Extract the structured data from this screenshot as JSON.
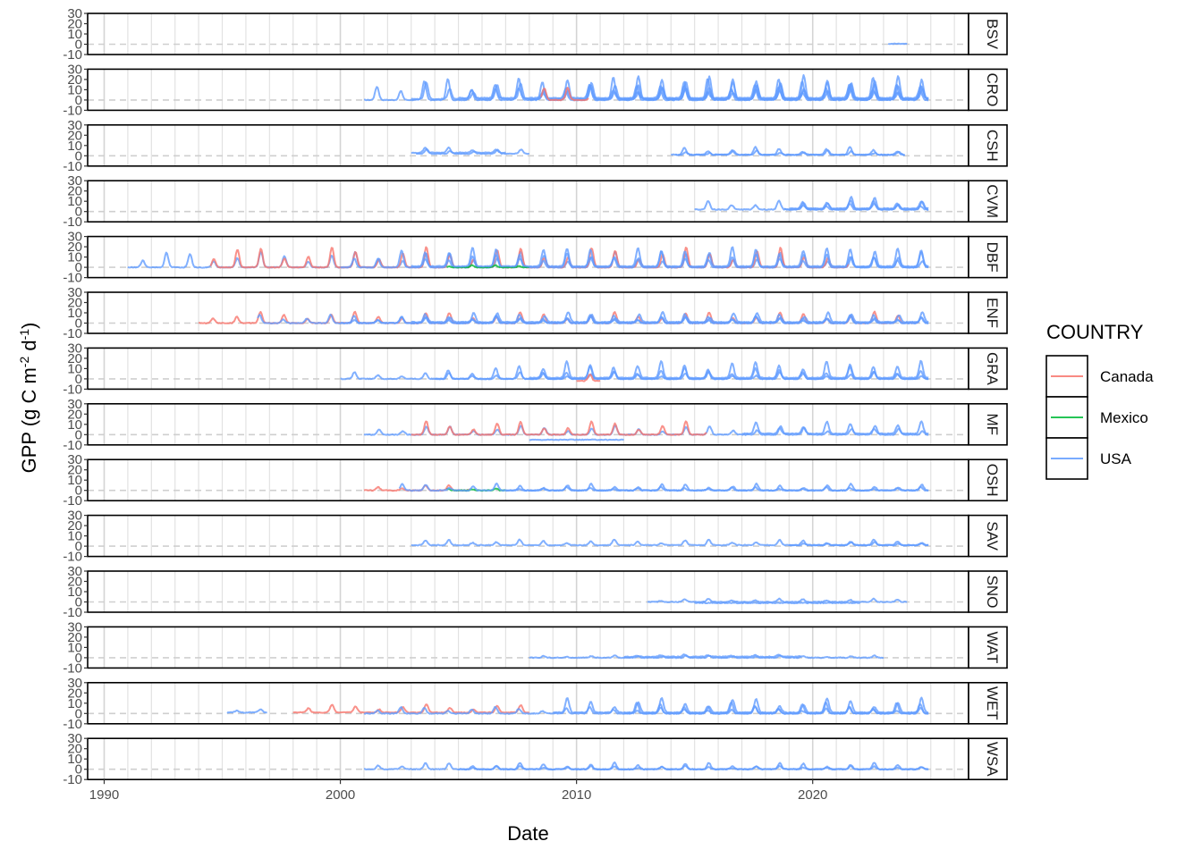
{
  "chart_data": {
    "type": "line",
    "xlabel": "Date",
    "ylabel": "GPP (g C m-2 d-1)",
    "ylabel_parts": {
      "main": "GPP (g C m",
      "sup1": "-2",
      "mid": " d",
      "sup2": "-1",
      "end": ")"
    },
    "x_ticks": [
      1990,
      2000,
      2010,
      2020
    ],
    "x_tick_labels": [
      "1990",
      "2000",
      "2010",
      "2020"
    ],
    "xlim": [
      1989.3,
      2026.6
    ],
    "y_ticks": [
      -10,
      0,
      10,
      20,
      30
    ],
    "y_tick_labels": [
      "-10",
      "0",
      "10",
      "20",
      "30"
    ],
    "ylim": [
      -10,
      30
    ],
    "reference_line": 0,
    "grid": "vertical major and minor",
    "facets": [
      "BSV",
      "CRO",
      "CSH",
      "CVM",
      "DBF",
      "ENF",
      "GRA",
      "MF",
      "OSH",
      "SAV",
      "SNO",
      "WAT",
      "WET",
      "WSA"
    ],
    "legend": {
      "title": "COUNTRY",
      "position": "right",
      "entries": [
        {
          "name": "Canada",
          "color": "#F8766D"
        },
        {
          "name": "Mexico",
          "color": "#00BA38"
        },
        {
          "name": "USA",
          "color": "#619CFF"
        }
      ]
    },
    "panels": [
      {
        "facet": "BSV",
        "series": [
          {
            "country": "USA",
            "start": 2023.2,
            "end": 2024.0,
            "peak": 0.5,
            "base": 0.5
          }
        ]
      },
      {
        "facet": "CRO",
        "series": [
          {
            "country": "USA",
            "start": 2001.0,
            "end": 2024.9,
            "peak": 20,
            "base": 0
          },
          {
            "country": "USA",
            "start": 2003.0,
            "end": 2024.9,
            "peak": 16,
            "base": 1
          },
          {
            "country": "USA",
            "start": 2005.0,
            "end": 2024.9,
            "peak": 14,
            "base": 2
          },
          {
            "country": "USA",
            "start": 2008.0,
            "end": 2024.9,
            "peak": 18,
            "base": 0.5
          },
          {
            "country": "Canada",
            "start": 2008.5,
            "end": 2010.5,
            "peak": 12,
            "base": 0
          },
          {
            "country": "USA",
            "start": 2012.0,
            "end": 2024.9,
            "peak": 22,
            "base": 1
          }
        ]
      },
      {
        "facet": "CSH",
        "series": [
          {
            "country": "USA",
            "start": 2003.0,
            "end": 2007.0,
            "peak": 8,
            "base": 3
          },
          {
            "country": "USA",
            "start": 2003.2,
            "end": 2008.0,
            "peak": 6,
            "base": 2
          },
          {
            "country": "USA",
            "start": 2014.0,
            "end": 2023.9,
            "peak": 8,
            "base": 1
          },
          {
            "country": "USA",
            "start": 2014.2,
            "end": 2023.9,
            "peak": 5,
            "base": 1
          }
        ]
      },
      {
        "facet": "CVM",
        "series": [
          {
            "country": "USA",
            "start": 2015.0,
            "end": 2024.9,
            "peak": 10,
            "base": 2
          },
          {
            "country": "USA",
            "start": 2018.8,
            "end": 2024.9,
            "peak": 14,
            "base": 2
          },
          {
            "country": "USA",
            "start": 2019.0,
            "end": 2024.9,
            "peak": 10,
            "base": 3
          }
        ]
      },
      {
        "facet": "DBF",
        "series": [
          {
            "country": "USA",
            "start": 1991.0,
            "end": 2024.9,
            "peak": 14,
            "base": 0
          },
          {
            "country": "Canada",
            "start": 1994.5,
            "end": 2021.5,
            "peak": 18,
            "base": 0
          },
          {
            "country": "USA",
            "start": 2000.0,
            "end": 2024.9,
            "peak": 16,
            "base": 0
          },
          {
            "country": "Mexico",
            "start": 2004.5,
            "end": 2008.0,
            "peak": 2,
            "base": 0
          },
          {
            "country": "USA",
            "start": 2003.0,
            "end": 2024.9,
            "peak": 18,
            "base": 1
          }
        ]
      },
      {
        "facet": "ENF",
        "series": [
          {
            "country": "Canada",
            "start": 1994.0,
            "end": 2024.5,
            "peak": 10,
            "base": 0
          },
          {
            "country": "USA",
            "start": 1996.5,
            "end": 2024.9,
            "peak": 8,
            "base": 0
          },
          {
            "country": "USA",
            "start": 2000.0,
            "end": 2024.9,
            "peak": 6,
            "base": 0
          },
          {
            "country": "USA",
            "start": 2003.0,
            "end": 2024.9,
            "peak": 10,
            "base": 1
          }
        ]
      },
      {
        "facet": "GRA",
        "series": [
          {
            "country": "USA",
            "start": 2000.0,
            "end": 2024.9,
            "peak": 6,
            "base": 0
          },
          {
            "country": "USA",
            "start": 2004.0,
            "end": 2024.9,
            "peak": 12,
            "base": 0
          },
          {
            "country": "Canada",
            "start": 2010.0,
            "end": 2011.0,
            "peak": 4,
            "base": -2
          },
          {
            "country": "USA",
            "start": 2008.0,
            "end": 2024.9,
            "peak": 16,
            "base": 1
          }
        ]
      },
      {
        "facet": "MF",
        "series": [
          {
            "country": "USA",
            "start": 2001.0,
            "end": 2024.9,
            "peak": 8,
            "base": 0
          },
          {
            "country": "Canada",
            "start": 2003.0,
            "end": 2015.5,
            "peak": 12,
            "base": 0
          },
          {
            "country": "USA",
            "start": 2008.0,
            "end": 2012.0,
            "peak": -5,
            "base": -5
          },
          {
            "country": "USA",
            "start": 2017.0,
            "end": 2024.9,
            "peak": 12,
            "base": 1
          }
        ]
      },
      {
        "facet": "OSH",
        "series": [
          {
            "country": "Canada",
            "start": 2001.0,
            "end": 2005.5,
            "peak": 5,
            "base": 0
          },
          {
            "country": "Mexico",
            "start": 2004.5,
            "end": 2007.0,
            "peak": 2,
            "base": 0
          },
          {
            "country": "USA",
            "start": 2002.5,
            "end": 2024.9,
            "peak": 6,
            "base": 0
          },
          {
            "country": "USA",
            "start": 2007.0,
            "end": 2024.9,
            "peak": 3,
            "base": 0
          }
        ]
      },
      {
        "facet": "SAV",
        "series": [
          {
            "country": "USA",
            "start": 2003.0,
            "end": 2024.9,
            "peak": 6,
            "base": 1
          },
          {
            "country": "USA",
            "start": 2019.0,
            "end": 2024.9,
            "peak": 4,
            "base": 1
          }
        ]
      },
      {
        "facet": "SNO",
        "series": [
          {
            "country": "USA",
            "start": 2013.0,
            "end": 2024.0,
            "peak": 3,
            "base": 0
          },
          {
            "country": "USA",
            "start": 2015.0,
            "end": 2022.0,
            "peak": -1,
            "base": -1
          }
        ]
      },
      {
        "facet": "WAT",
        "series": [
          {
            "country": "USA",
            "start": 2008.0,
            "end": 2023.0,
            "peak": 2,
            "base": 0
          },
          {
            "country": "USA",
            "start": 2012.0,
            "end": 2019.5,
            "peak": 3,
            "base": 1
          }
        ]
      },
      {
        "facet": "WET",
        "series": [
          {
            "country": "USA",
            "start": 1995.2,
            "end": 1996.9,
            "peak": 4,
            "base": 1
          },
          {
            "country": "Canada",
            "start": 1998.0,
            "end": 2008.0,
            "peak": 8,
            "base": 1
          },
          {
            "country": "USA",
            "start": 2001.0,
            "end": 2024.9,
            "peak": 6,
            "base": 0
          },
          {
            "country": "USA",
            "start": 2009.0,
            "end": 2024.9,
            "peak": 14,
            "base": 1
          },
          {
            "country": "USA",
            "start": 2012.0,
            "end": 2024.9,
            "peak": 10,
            "base": 0
          }
        ]
      },
      {
        "facet": "WSA",
        "series": [
          {
            "country": "USA",
            "start": 2001.0,
            "end": 2024.9,
            "peak": 6,
            "base": 0
          },
          {
            "country": "USA",
            "start": 2005.0,
            "end": 2024.9,
            "peak": 3,
            "base": 0
          }
        ]
      }
    ]
  }
}
